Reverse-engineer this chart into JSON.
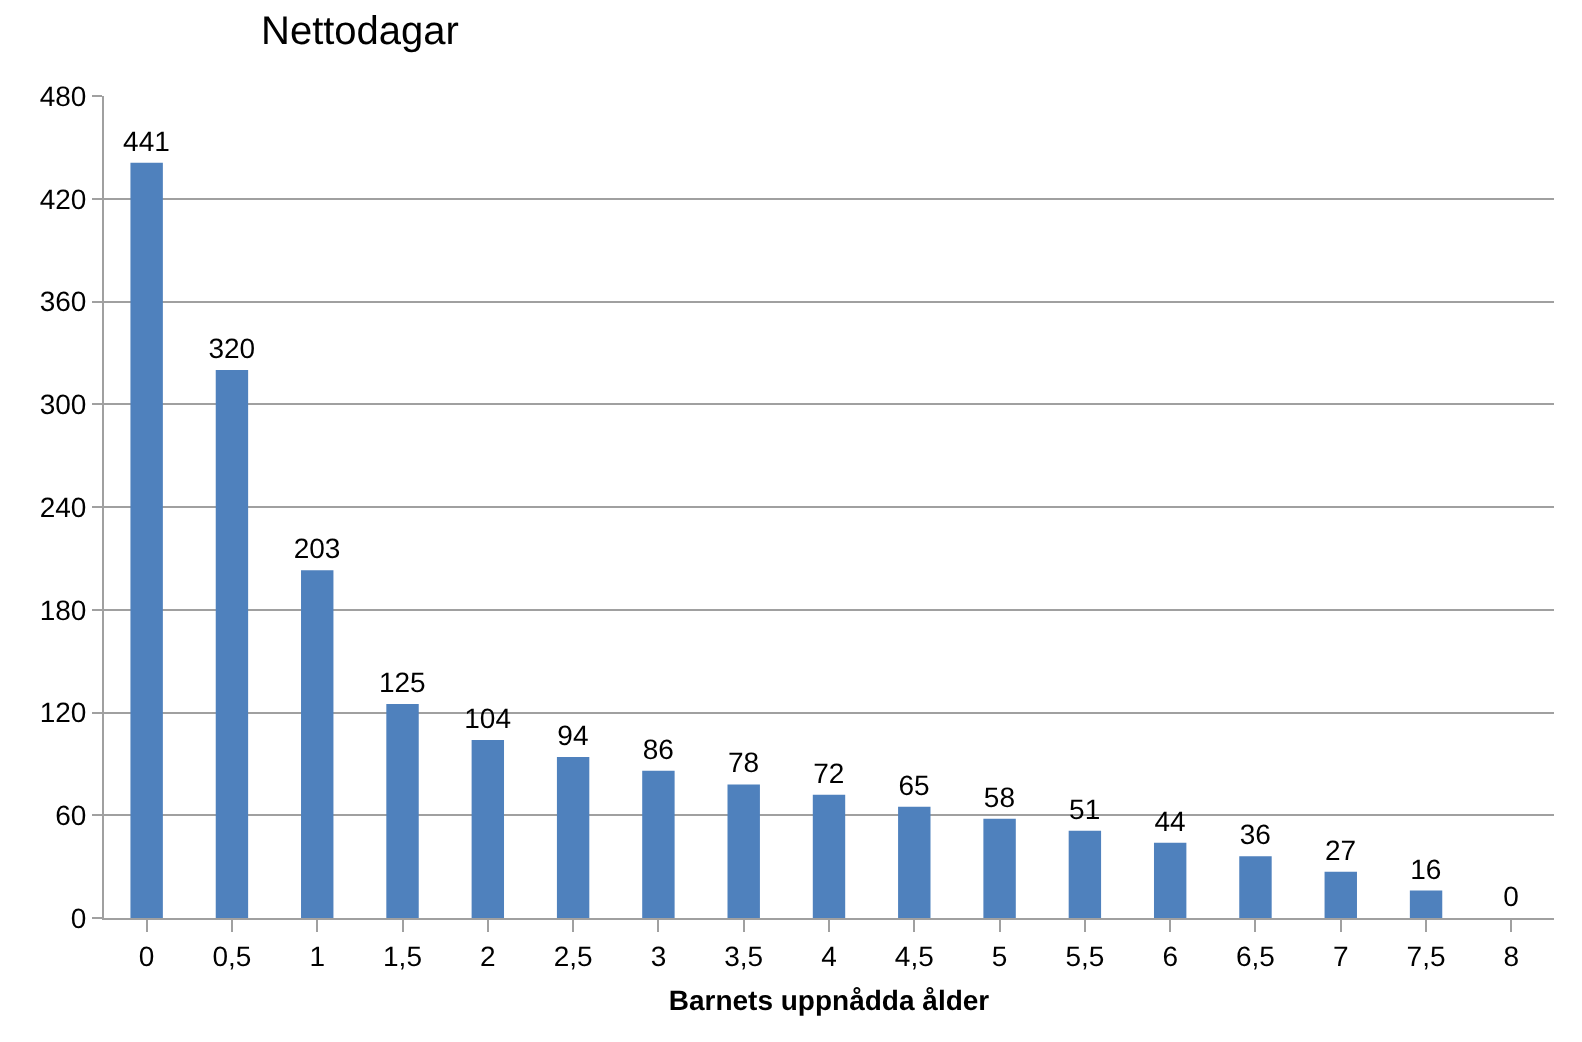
{
  "chart_data": {
    "type": "bar",
    "title": "Nettodagar",
    "xlabel": "Barnets uppnådda ålder",
    "categories": [
      "0",
      "0,5",
      "1",
      "1,5",
      "2",
      "2,5",
      "3",
      "3,5",
      "4",
      "4,5",
      "5",
      "5,5",
      "6",
      "6,5",
      "7",
      "7,5",
      "8"
    ],
    "values": [
      441,
      320,
      203,
      125,
      104,
      94,
      86,
      78,
      72,
      65,
      58,
      51,
      44,
      36,
      27,
      16,
      0
    ],
    "color": "#4f81bd",
    "ylim": [
      0,
      480
    ],
    "yticks": [
      0,
      60,
      120,
      180,
      240,
      300,
      360,
      420,
      480
    ],
    "grid": "y",
    "data_labels": true
  }
}
